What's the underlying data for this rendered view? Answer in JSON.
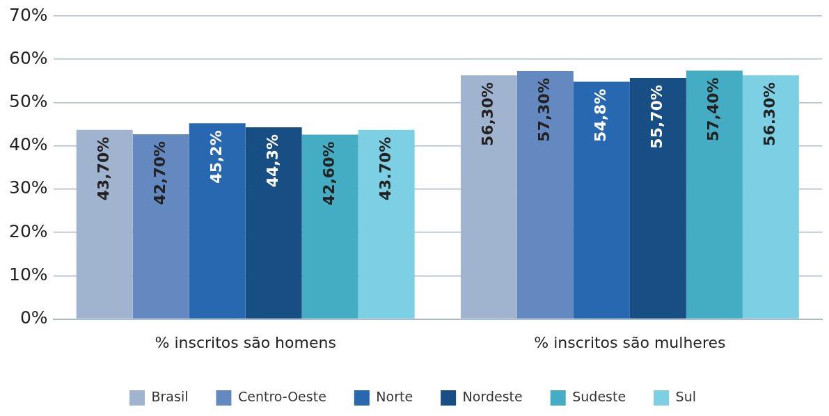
{
  "chart_data": {
    "type": "bar",
    "categories": [
      "% inscritos são homens",
      "% inscritos são mulheres"
    ],
    "series": [
      {
        "name": "Brasil",
        "color": "#a0b4d0",
        "values": [
          43.7,
          56.3
        ],
        "value_labels": [
          "43,70%",
          "56,30%"
        ]
      },
      {
        "name": "Centro-Oeste",
        "color": "#6389c0",
        "values": [
          42.7,
          57.3
        ],
        "value_labels": [
          "42,70%",
          "57,30%"
        ]
      },
      {
        "name": "Norte",
        "color": "#2868b0",
        "values": [
          45.2,
          54.8
        ],
        "value_labels": [
          "45,2%",
          "54,8%"
        ]
      },
      {
        "name": "Nordeste",
        "color": "#174e84",
        "values": [
          44.3,
          55.7
        ],
        "value_labels": [
          "44,3%",
          "55,70%"
        ]
      },
      {
        "name": "Sudeste",
        "color": "#44adc4",
        "values": [
          42.6,
          57.4
        ],
        "value_labels": [
          "42,60%",
          "57,40%"
        ]
      },
      {
        "name": "Sul",
        "color": "#7dd0e3",
        "values": [
          43.7,
          56.3
        ],
        "value_labels": [
          "43.70%",
          "56.30%"
        ]
      }
    ],
    "ylim": [
      0,
      70
    ],
    "yticks": [
      {
        "value": 0,
        "label": "0%"
      },
      {
        "value": 10,
        "label": "10%"
      },
      {
        "value": 20,
        "label": "20%"
      },
      {
        "value": 30,
        "label": "30%"
      },
      {
        "value": 40,
        "label": "40%"
      },
      {
        "value": 50,
        "label": "50%"
      },
      {
        "value": 60,
        "label": "60%"
      },
      {
        "value": 70,
        "label": "70%"
      }
    ],
    "grid": "y",
    "legend": "bottom"
  }
}
